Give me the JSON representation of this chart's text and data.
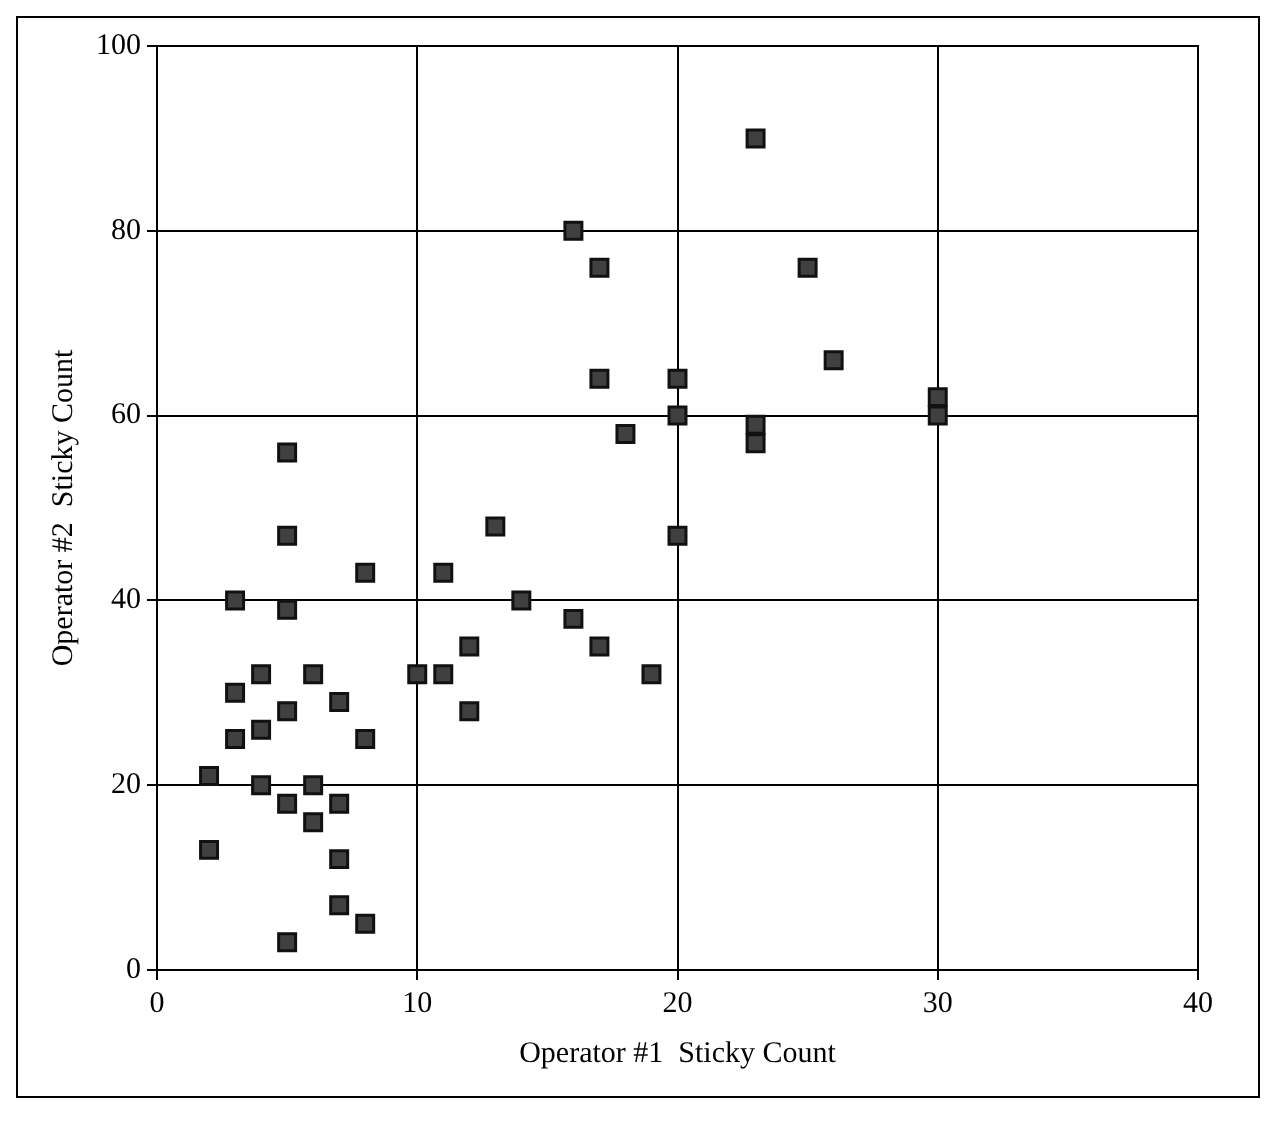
{
  "chart_data": {
    "type": "scatter",
    "xlabel": "Operator #1  Sticky Count",
    "ylabel": "Operator #2  Sticky Count",
    "x": [
      2,
      2,
      3,
      3,
      3,
      4,
      4,
      4,
      5,
      5,
      5,
      5,
      5,
      5,
      6,
      6,
      6,
      7,
      7,
      7,
      7,
      8,
      8,
      8,
      10,
      11,
      11,
      12,
      12,
      13,
      14,
      16,
      16,
      17,
      17,
      17,
      18,
      19,
      20,
      20,
      20,
      23,
      23,
      23,
      25,
      26,
      30,
      30
    ],
    "values": [
      13,
      21,
      25,
      30,
      40,
      20,
      26,
      32,
      3,
      18,
      28,
      39,
      47,
      56,
      16,
      20,
      32,
      7,
      12,
      18,
      29,
      5,
      25,
      43,
      32,
      32,
      43,
      28,
      35,
      48,
      40,
      38,
      80,
      35,
      64,
      76,
      58,
      32,
      47,
      60,
      64,
      57,
      59,
      90,
      76,
      66,
      60,
      62
    ],
    "color": "#404040",
    "marker": "square",
    "xlim": [
      0,
      40
    ],
    "xticks": [
      0,
      10,
      20,
      30,
      40
    ],
    "ylim": [
      0,
      100
    ],
    "yticks": [
      0,
      20,
      40,
      60,
      80,
      100
    ],
    "grid": true,
    "legend": false
  }
}
